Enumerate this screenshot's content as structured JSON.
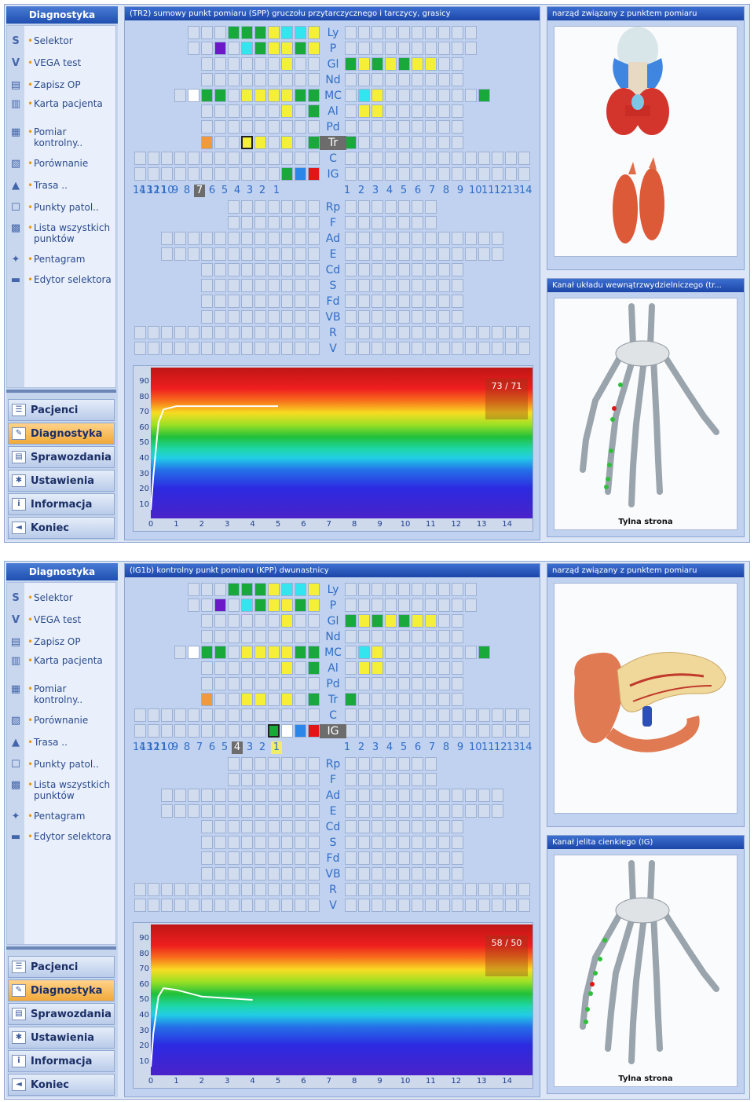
{
  "sidebar": {
    "title": "Diagnostyka",
    "items": [
      {
        "icon": "S",
        "label": "Selektor"
      },
      {
        "icon": "V",
        "label": "VEGA test"
      },
      {
        "icon": "▤",
        "label": "Zapisz OP"
      },
      {
        "icon": "▥",
        "label": "Karta pacjenta"
      },
      {
        "icon": "▦",
        "label": "Pomiar kontrolny.."
      },
      {
        "icon": "▧",
        "label": "Porównanie"
      },
      {
        "icon": "▲",
        "label": "Trasa .."
      },
      {
        "icon": "☐",
        "label": "Punkty patol.."
      },
      {
        "icon": "▩",
        "label": "Lista wszystkich punktów"
      },
      {
        "icon": "✦",
        "label": "Pentagram"
      },
      {
        "icon": "▬",
        "label": "Edytor selektora"
      }
    ],
    "nav": [
      {
        "icon": "☰",
        "label": "Pacjenci",
        "active": false
      },
      {
        "icon": "✎",
        "label": "Diagnostyka",
        "active": true
      },
      {
        "icon": "▤",
        "label": "Sprawozdania",
        "active": false
      },
      {
        "icon": "✱",
        "label": "Ustawienia",
        "active": false
      },
      {
        "icon": "i",
        "label": "Informacja",
        "active": false
      },
      {
        "icon": "◄",
        "label": "Koniec",
        "active": false
      }
    ]
  },
  "meridians_top": [
    "Ly",
    "P",
    "Gl",
    "Nd",
    "MC",
    "Al",
    "Pd",
    "Tr",
    "C",
    "IG"
  ],
  "meridians_bottom": [
    "Rp",
    "F",
    "Ad",
    "E",
    "Cd",
    "S",
    "Fd",
    "VB",
    "R",
    "V"
  ],
  "numbers_left": [
    "14",
    "13",
    "12",
    "11",
    "10",
    "9",
    "8",
    "7",
    "6",
    "5",
    "4",
    "3",
    "2",
    "1"
  ],
  "numbers_right": [
    "1",
    "2",
    "3",
    "4",
    "5",
    "6",
    "7",
    "8",
    "9",
    "10",
    "11",
    "12",
    "13",
    "14"
  ],
  "chart_axes": {
    "yticks": [
      "90",
      "80",
      "70",
      "60",
      "50",
      "40",
      "30",
      "20",
      "10"
    ],
    "xticks": [
      "0",
      "1",
      "2",
      "3",
      "4",
      "5",
      "6",
      "7",
      "8",
      "9",
      "10",
      "11",
      "12",
      "13",
      "14"
    ]
  },
  "screens": [
    {
      "panel_title": "(TR2) sumowy punkt pomiaru (SPP) gruczołu przytarczycznego i tarczycy, grasicy",
      "organ_title": "narząd związany z punktem pomiaru",
      "channel_title": "Kanał układu wewnątrzwydzielniczego (tr...",
      "caption": "Tylna strona",
      "readout": "73 / 71",
      "selected_meridian": "Tr",
      "selected_number": "7",
      "chart_data": {
        "type": "line",
        "x": [
          0,
          0.1,
          0.3,
          0.5,
          1,
          2,
          3,
          4,
          5
        ],
        "values": [
          10,
          30,
          62,
          70,
          72,
          72,
          72,
          72,
          72
        ],
        "ylim": [
          5,
          95
        ],
        "xlim": [
          0,
          15
        ],
        "title": "",
        "xlabel": "",
        "ylabel": ""
      }
    },
    {
      "panel_title": "(IG1b) kontrolny punkt pomiaru (KPP) dwunastnicy",
      "organ_title": "narząd związany z punktem pomiaru",
      "channel_title": "Kanał jelita cienkiego (IG)",
      "caption": "Tylna strona",
      "readout": "58 / 50",
      "selected_meridian": "IG",
      "selected_number": "4",
      "chart_data": {
        "type": "line",
        "x": [
          0,
          0.1,
          0.3,
          0.5,
          1,
          2,
          3,
          4
        ],
        "values": [
          10,
          30,
          52,
          57,
          56,
          52,
          51,
          50
        ],
        "ylim": [
          5,
          95
        ],
        "xlim": [
          0,
          15
        ],
        "title": "",
        "xlabel": "",
        "ylabel": ""
      }
    }
  ],
  "colors": {
    "accent": "#1b46a8",
    "active_nav": "#f1a93a",
    "meridian_text": "#2f6cc7"
  }
}
